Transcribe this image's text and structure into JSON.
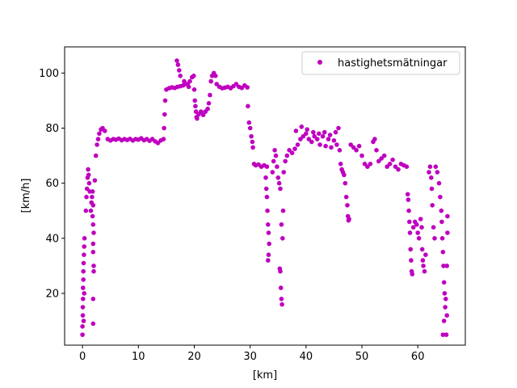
{
  "chart_data": {
    "type": "scatter",
    "xlabel": "[km]",
    "ylabel": "[km/h]",
    "xlim": [
      -3.2,
      68.5
    ],
    "ylim": [
      1.2,
      109.5
    ],
    "xticks": [
      0,
      10,
      20,
      30,
      40,
      50,
      60
    ],
    "yticks": [
      20,
      40,
      60,
      80,
      100
    ],
    "grid": false,
    "legend_position": "top-right",
    "series": [
      {
        "name": "hastighetsmätningar",
        "color": "#bf00bf",
        "marker": "circle",
        "points": [
          [
            0.0,
            5
          ],
          [
            0.0,
            8
          ],
          [
            0.05,
            12
          ],
          [
            0.05,
            15
          ],
          [
            0.1,
            18
          ],
          [
            0.1,
            22
          ],
          [
            0.15,
            25
          ],
          [
            0.15,
            28
          ],
          [
            0.2,
            31
          ],
          [
            0.25,
            34
          ],
          [
            0.3,
            37
          ],
          [
            0.35,
            40
          ],
          [
            0.3,
            20
          ],
          [
            0.2,
            10
          ],
          [
            0.6,
            50
          ],
          [
            0.7,
            55
          ],
          [
            0.8,
            58
          ],
          [
            0.9,
            62
          ],
          [
            1.0,
            65
          ],
          [
            1.1,
            63
          ],
          [
            1.2,
            60
          ],
          [
            1.3,
            57
          ],
          [
            1.5,
            50
          ],
          [
            1.6,
            53
          ],
          [
            1.7,
            55
          ],
          [
            1.8,
            57
          ],
          [
            1.9,
            52
          ],
          [
            1.8,
            48
          ],
          [
            1.9,
            45
          ],
          [
            2.0,
            42
          ],
          [
            1.9,
            38
          ],
          [
            1.9,
            35
          ],
          [
            2.0,
            30
          ],
          [
            2.0,
            28
          ],
          [
            1.9,
            18
          ],
          [
            1.9,
            9
          ],
          [
            2.2,
            61
          ],
          [
            2.4,
            70
          ],
          [
            2.6,
            74
          ],
          [
            2.8,
            76
          ],
          [
            3.0,
            78
          ],
          [
            3.3,
            79.5
          ],
          [
            3.6,
            80
          ],
          [
            4.0,
            79
          ],
          [
            4.5,
            76
          ],
          [
            5.0,
            75.5
          ],
          [
            5.5,
            76
          ],
          [
            6.0,
            75.8
          ],
          [
            6.5,
            76.2
          ],
          [
            7.0,
            75.6
          ],
          [
            7.5,
            76
          ],
          [
            8.0,
            75.7
          ],
          [
            8.5,
            76.1
          ],
          [
            9.0,
            75.5
          ],
          [
            9.5,
            76
          ],
          [
            10.0,
            75.8
          ],
          [
            10.5,
            76.3
          ],
          [
            11.0,
            75.6
          ],
          [
            11.5,
            76
          ],
          [
            12.0,
            75.4
          ],
          [
            12.5,
            76
          ],
          [
            13.0,
            75.2
          ],
          [
            13.5,
            74.6
          ],
          [
            14.0,
            75.5
          ],
          [
            14.5,
            76
          ],
          [
            14.6,
            80
          ],
          [
            14.7,
            85
          ],
          [
            14.8,
            90
          ],
          [
            15.0,
            94
          ],
          [
            15.5,
            94.5
          ],
          [
            16.0,
            94.8
          ],
          [
            16.5,
            94.6
          ],
          [
            17.0,
            95
          ],
          [
            17.5,
            95.2
          ],
          [
            18.0,
            95.5
          ],
          [
            18.5,
            96
          ],
          [
            19.0,
            95
          ],
          [
            16.9,
            104.5
          ],
          [
            17.1,
            103
          ],
          [
            17.3,
            101
          ],
          [
            17.5,
            99
          ],
          [
            18.2,
            97
          ],
          [
            18.8,
            96
          ],
          [
            19.2,
            97
          ],
          [
            19.6,
            98.5
          ],
          [
            19.9,
            99
          ],
          [
            20.0,
            94
          ],
          [
            20.1,
            90
          ],
          [
            20.2,
            88
          ],
          [
            20.3,
            86
          ],
          [
            20.4,
            84
          ],
          [
            20.5,
            83.5
          ],
          [
            20.8,
            85
          ],
          [
            21.2,
            86
          ],
          [
            21.6,
            84.8
          ],
          [
            22.0,
            86
          ],
          [
            22.4,
            87
          ],
          [
            22.6,
            89
          ],
          [
            22.8,
            92
          ],
          [
            23.0,
            97
          ],
          [
            23.2,
            99
          ],
          [
            23.5,
            100
          ],
          [
            23.8,
            99
          ],
          [
            24.0,
            96
          ],
          [
            24.5,
            95
          ],
          [
            25.0,
            94.5
          ],
          [
            25.5,
            94.7
          ],
          [
            26.0,
            95
          ],
          [
            26.5,
            94.5
          ],
          [
            27.0,
            95.2
          ],
          [
            27.5,
            96
          ],
          [
            28.0,
            95
          ],
          [
            28.5,
            94.6
          ],
          [
            29.0,
            95.5
          ],
          [
            29.5,
            94.8
          ],
          [
            29.6,
            88
          ],
          [
            29.8,
            82
          ],
          [
            30.0,
            80
          ],
          [
            30.2,
            77
          ],
          [
            30.4,
            75
          ],
          [
            30.5,
            73
          ],
          [
            30.7,
            67
          ],
          [
            31.0,
            66.5
          ],
          [
            31.5,
            66.8
          ],
          [
            32.0,
            66
          ],
          [
            32.5,
            66.5
          ],
          [
            33.0,
            66
          ],
          [
            32.8,
            62
          ],
          [
            32.9,
            58
          ],
          [
            33.0,
            55
          ],
          [
            33.1,
            50
          ],
          [
            33.2,
            45
          ],
          [
            33.3,
            42
          ],
          [
            33.4,
            38
          ],
          [
            33.3,
            34
          ],
          [
            33.2,
            32
          ],
          [
            34.0,
            64
          ],
          [
            34.2,
            68
          ],
          [
            34.4,
            72
          ],
          [
            34.6,
            70
          ],
          [
            34.8,
            66
          ],
          [
            35.0,
            62
          ],
          [
            35.2,
            60
          ],
          [
            35.4,
            58
          ],
          [
            35.3,
            29
          ],
          [
            35.4,
            28
          ],
          [
            35.5,
            22
          ],
          [
            35.6,
            18
          ],
          [
            35.7,
            16
          ],
          [
            35.6,
            45
          ],
          [
            35.8,
            40
          ],
          [
            35.9,
            50
          ],
          [
            36.0,
            64
          ],
          [
            36.3,
            68
          ],
          [
            36.6,
            70
          ],
          [
            37.0,
            72
          ],
          [
            37.5,
            71
          ],
          [
            38.0,
            72.5
          ],
          [
            38.5,
            74
          ],
          [
            39.0,
            76
          ],
          [
            39.5,
            77
          ],
          [
            40.0,
            78
          ],
          [
            40.5,
            76
          ],
          [
            41.0,
            75
          ],
          [
            41.5,
            77
          ],
          [
            42.0,
            76
          ],
          [
            42.5,
            74
          ],
          [
            43.0,
            77
          ],
          [
            43.5,
            73.5
          ],
          [
            44.0,
            76
          ],
          [
            44.5,
            73
          ],
          [
            45.0,
            75.5
          ],
          [
            45.5,
            74
          ],
          [
            46.0,
            72
          ],
          [
            38.2,
            79
          ],
          [
            39.2,
            80.5
          ],
          [
            40.2,
            79.5
          ],
          [
            41.3,
            78.5
          ],
          [
            42.3,
            78
          ],
          [
            43.3,
            78.5
          ],
          [
            44.3,
            77.5
          ],
          [
            45.3,
            78.5
          ],
          [
            45.8,
            80
          ],
          [
            46.2,
            67
          ],
          [
            46.4,
            65
          ],
          [
            46.6,
            64
          ],
          [
            46.8,
            63
          ],
          [
            47.0,
            60
          ],
          [
            47.2,
            55
          ],
          [
            47.4,
            52
          ],
          [
            47.5,
            48
          ],
          [
            47.6,
            46.5
          ],
          [
            47.7,
            47
          ],
          [
            48.0,
            74
          ],
          [
            48.5,
            73
          ],
          [
            49.0,
            72
          ],
          [
            49.5,
            73.5
          ],
          [
            50.0,
            70
          ],
          [
            50.5,
            67
          ],
          [
            51.0,
            66
          ],
          [
            51.5,
            67
          ],
          [
            52.0,
            75
          ],
          [
            52.3,
            76
          ],
          [
            52.6,
            72
          ],
          [
            53.0,
            68
          ],
          [
            53.5,
            69
          ],
          [
            54.0,
            70
          ],
          [
            54.5,
            66
          ],
          [
            55.0,
            67
          ],
          [
            55.5,
            68.5
          ],
          [
            56.0,
            66
          ],
          [
            56.5,
            65
          ],
          [
            57.0,
            67
          ],
          [
            57.5,
            66.5
          ],
          [
            58.0,
            66
          ],
          [
            58.2,
            56
          ],
          [
            58.3,
            54
          ],
          [
            58.4,
            50
          ],
          [
            58.5,
            46
          ],
          [
            58.6,
            42
          ],
          [
            58.7,
            36
          ],
          [
            58.8,
            32
          ],
          [
            58.9,
            28
          ],
          [
            59.0,
            27
          ],
          [
            59.2,
            44
          ],
          [
            59.5,
            46
          ],
          [
            59.8,
            45
          ],
          [
            60.0,
            42
          ],
          [
            60.2,
            40
          ],
          [
            60.5,
            47
          ],
          [
            60.7,
            44
          ],
          [
            60.8,
            36
          ],
          [
            60.9,
            32
          ],
          [
            61.0,
            30
          ],
          [
            61.2,
            28
          ],
          [
            61.4,
            34
          ],
          [
            62.0,
            64
          ],
          [
            62.2,
            66
          ],
          [
            62.4,
            62
          ],
          [
            62.5,
            58
          ],
          [
            62.6,
            52
          ],
          [
            62.8,
            44
          ],
          [
            63.0,
            40
          ],
          [
            63.2,
            66
          ],
          [
            63.5,
            64
          ],
          [
            63.8,
            60
          ],
          [
            64.0,
            55
          ],
          [
            64.2,
            50
          ],
          [
            64.3,
            46
          ],
          [
            64.4,
            40
          ],
          [
            64.5,
            35
          ],
          [
            64.6,
            30
          ],
          [
            64.7,
            24
          ],
          [
            64.8,
            20
          ],
          [
            64.9,
            15
          ],
          [
            64.7,
            10
          ],
          [
            64.5,
            5
          ],
          [
            65.1,
            5
          ],
          [
            65.2,
            12
          ],
          [
            65.0,
            18
          ],
          [
            65.2,
            30
          ],
          [
            65.3,
            42
          ],
          [
            65.3,
            48
          ]
        ]
      }
    ]
  }
}
